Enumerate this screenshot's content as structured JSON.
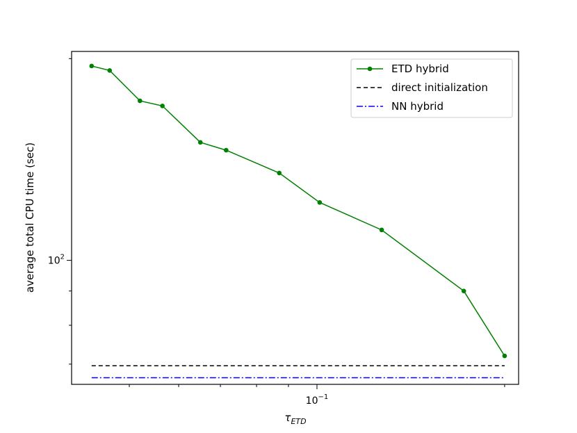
{
  "chart_data": {
    "type": "line",
    "xscale": "log",
    "yscale": "log",
    "xlim": [
      0.0404,
      0.2106
    ],
    "ylim": [
      65.3,
      205
    ],
    "xlabel": "τ",
    "xlabel_sub": "ETD",
    "ylabel": "average total CPU time (sec)",
    "x_tick_labels": [
      {
        "x": 0.1,
        "base": "10",
        "exp": "−1"
      }
    ],
    "y_tick_labels": [
      {
        "y": 100,
        "base": "10",
        "exp": "2"
      }
    ],
    "grid": false,
    "legend_placement": "top-right",
    "series": [
      {
        "name": "ETD hybrid",
        "style": "solid",
        "marker": "circle",
        "color": "#008000",
        "x": [
          0.0435,
          0.0465,
          0.052,
          0.0565,
          0.065,
          0.0715,
          0.087,
          0.101,
          0.127,
          0.172,
          0.2
        ],
        "y": [
          195,
          192,
          173,
          170,
          150,
          146,
          135,
          122,
          111,
          90,
          72
        ]
      },
      {
        "name": "direct initialization",
        "style": "dashed",
        "marker": "none",
        "color": "#000000",
        "x": [
          0.0435,
          0.2
        ],
        "y": [
          69.6,
          69.6
        ]
      },
      {
        "name": "NN hybrid",
        "style": "dashdot",
        "marker": "none",
        "color": "#0000ff",
        "x": [
          0.0435,
          0.2
        ],
        "y": [
          66.8,
          66.8
        ]
      }
    ]
  }
}
